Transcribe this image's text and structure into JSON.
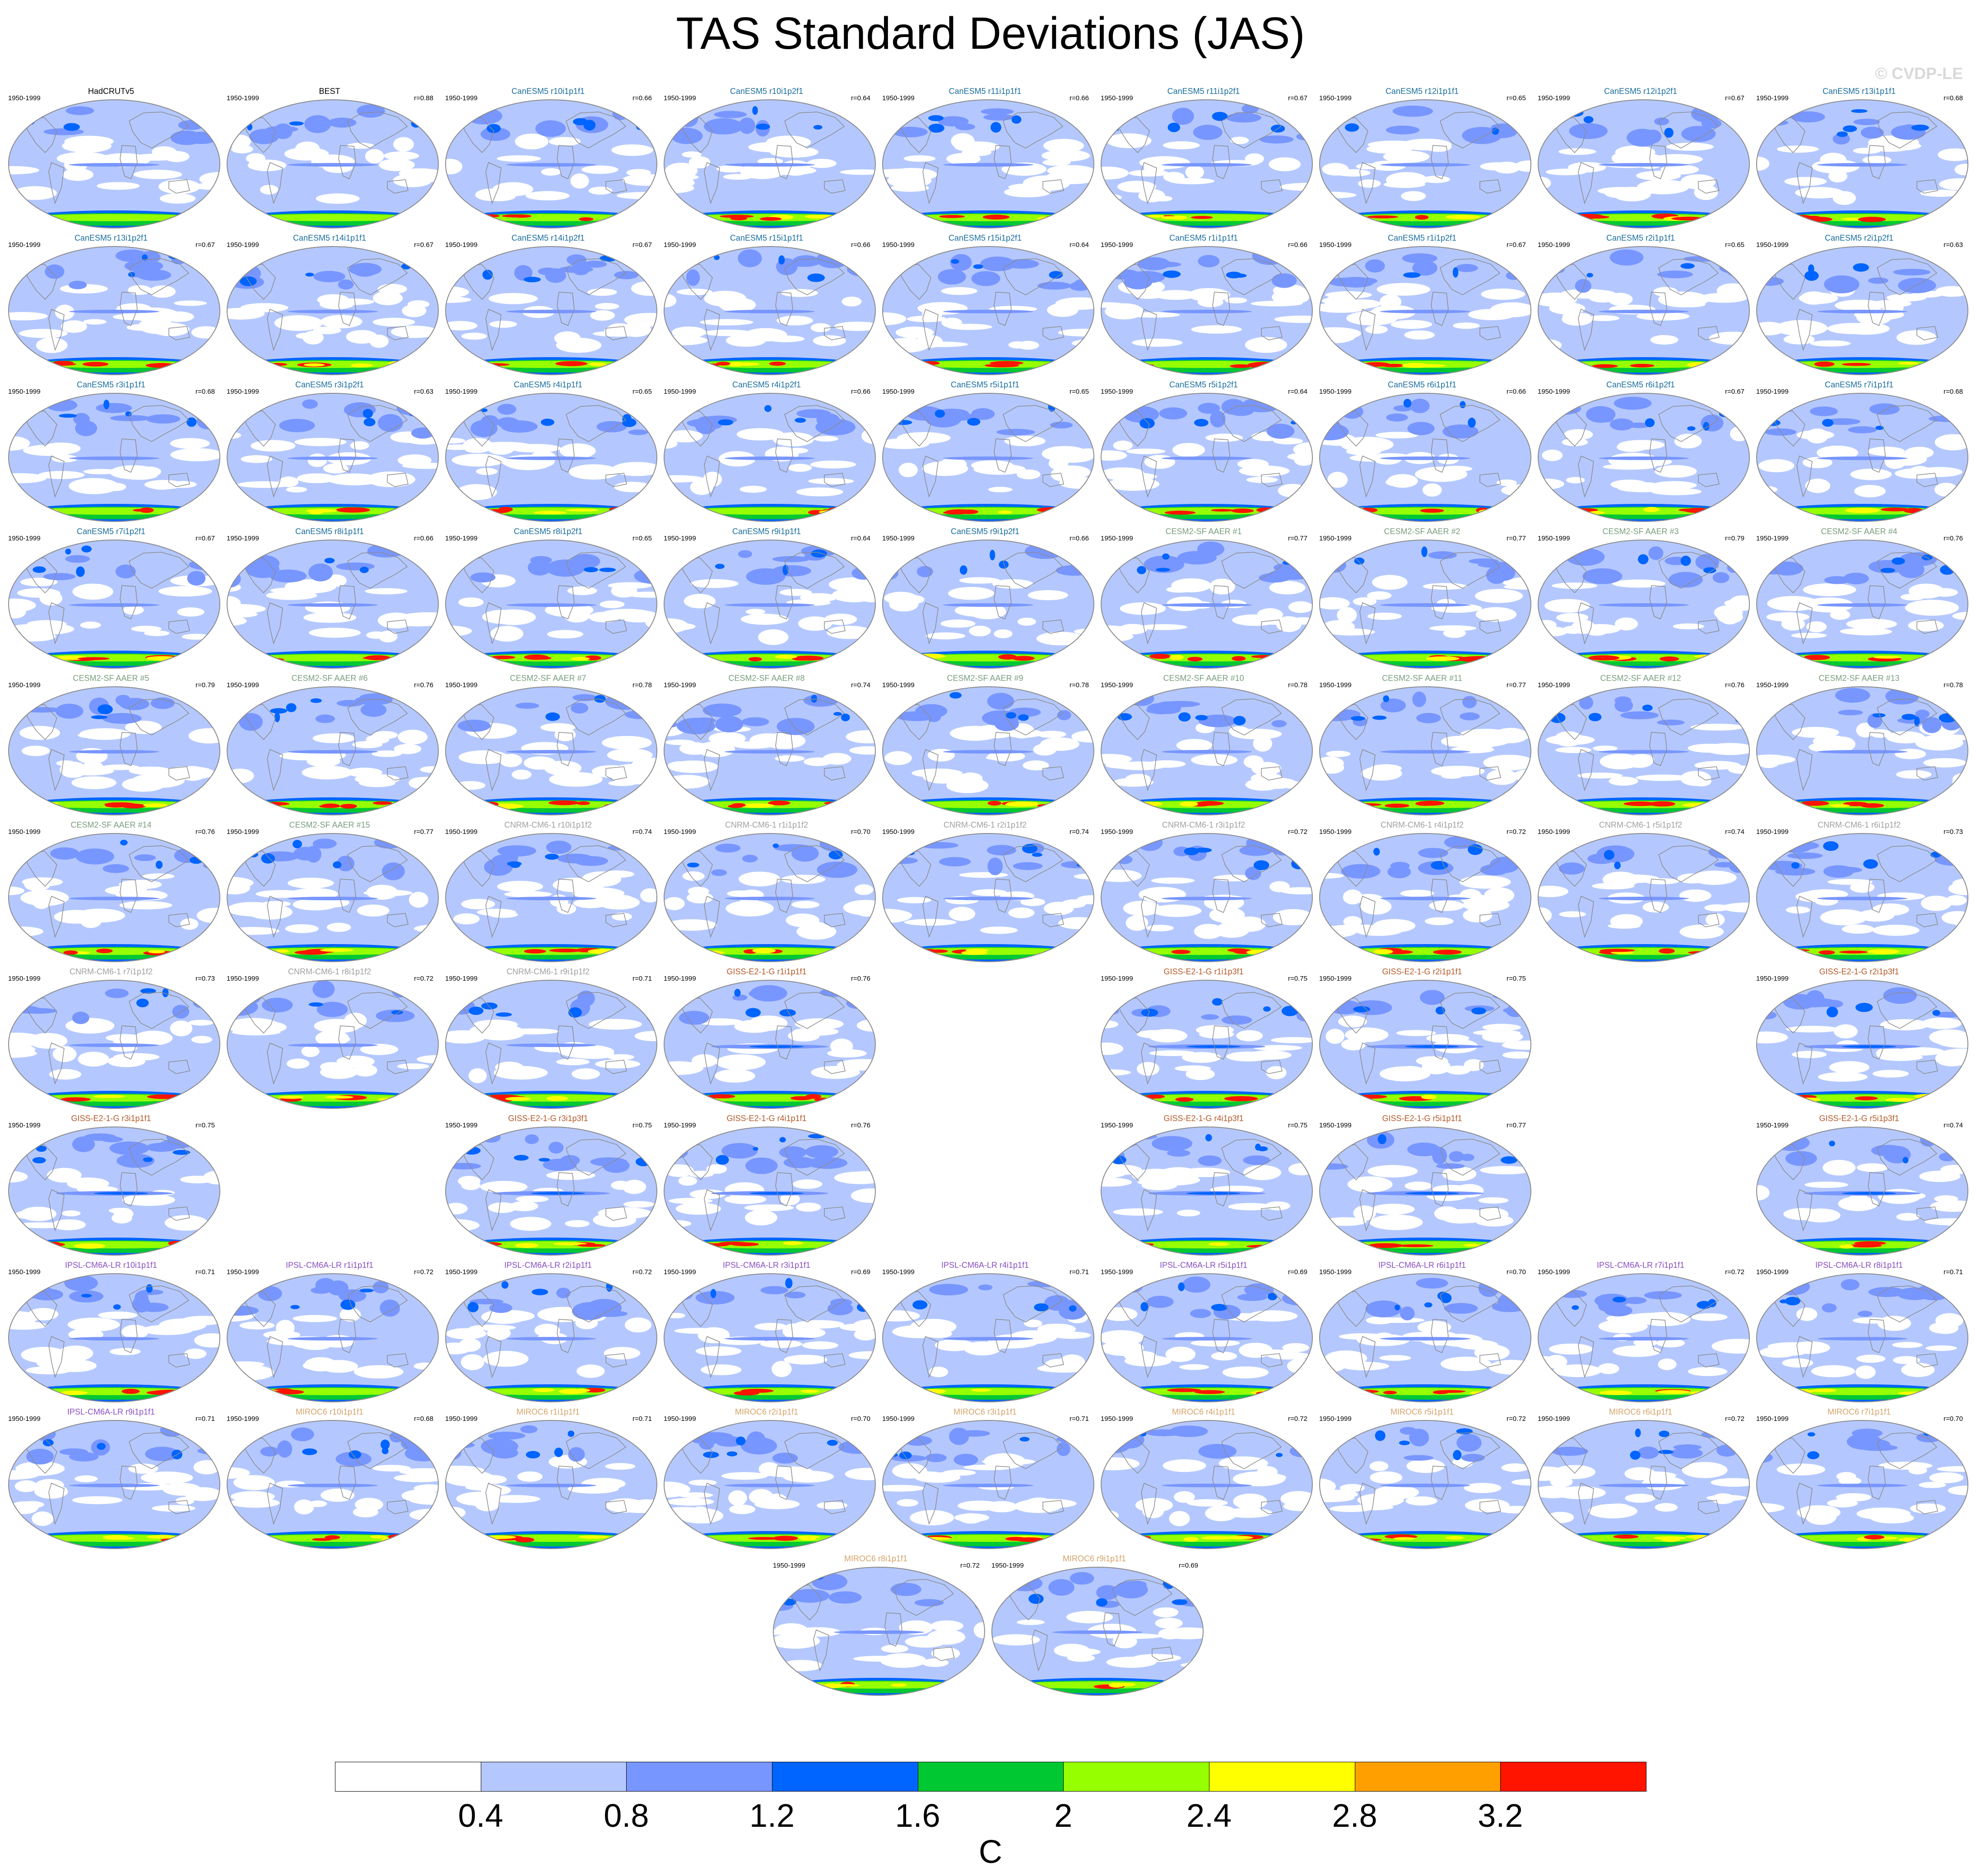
{
  "title": "TAS Standard Deviations (JAS)",
  "watermark": "© CVDP-LE",
  "period": "1950-1999",
  "colors": {
    "levels": [
      "#ffffff",
      "#b4c8ff",
      "#7896ff",
      "#0064ff",
      "#00c832",
      "#96ff00",
      "#ffff00",
      "#ffa000",
      "#ff1400"
    ],
    "coastline": "#8c8c8c",
    "border": "#8c8c8c",
    "canesm5": "#1a6e9e",
    "cesm2": "#7a9e7e",
    "cnrm": "#a0a0a0",
    "giss": "#b45a2a",
    "ipsl": "#8a4fc2",
    "miroc6": "#d4a36a",
    "obs": "#000000"
  },
  "colorbar": {
    "ticks": [
      "0.4",
      "0.8",
      "1.2",
      "1.6",
      "2",
      "2.4",
      "2.8",
      "3.2"
    ],
    "units": "C"
  },
  "panels": [
    {
      "name": "HadCRUTv5",
      "r": "",
      "group": "obs",
      "row": 0,
      "col": 0
    },
    {
      "name": "BEST",
      "r": "r=0.88",
      "group": "obs",
      "row": 0,
      "col": 1
    },
    {
      "name": "CanESM5 r10i1p1f1",
      "r": "r=0.66",
      "group": "canesm5",
      "row": 0,
      "col": 2
    },
    {
      "name": "CanESM5 r10i1p2f1",
      "r": "r=0.64",
      "group": "canesm5",
      "row": 0,
      "col": 3
    },
    {
      "name": "CanESM5 r11i1p1f1",
      "r": "r=0.66",
      "group": "canesm5",
      "row": 0,
      "col": 4
    },
    {
      "name": "CanESM5 r11i1p2f1",
      "r": "r=0.67",
      "group": "canesm5",
      "row": 0,
      "col": 5
    },
    {
      "name": "CanESM5 r12i1p1f1",
      "r": "r=0.65",
      "group": "canesm5",
      "row": 0,
      "col": 6
    },
    {
      "name": "CanESM5 r12i1p2f1",
      "r": "r=0.67",
      "group": "canesm5",
      "row": 0,
      "col": 7
    },
    {
      "name": "CanESM5 r13i1p1f1",
      "r": "r=0.68",
      "group": "canesm5",
      "row": 0,
      "col": 8
    },
    {
      "name": "CanESM5 r13i1p2f1",
      "r": "r=0.67",
      "group": "canesm5",
      "row": 1,
      "col": 0
    },
    {
      "name": "CanESM5 r14i1p1f1",
      "r": "r=0.67",
      "group": "canesm5",
      "row": 1,
      "col": 1
    },
    {
      "name": "CanESM5 r14i1p2f1",
      "r": "r=0.67",
      "group": "canesm5",
      "row": 1,
      "col": 2
    },
    {
      "name": "CanESM5 r15i1p1f1",
      "r": "r=0.66",
      "group": "canesm5",
      "row": 1,
      "col": 3
    },
    {
      "name": "CanESM5 r15i1p2f1",
      "r": "r=0.64",
      "group": "canesm5",
      "row": 1,
      "col": 4
    },
    {
      "name": "CanESM5 r1i1p1f1",
      "r": "r=0.66",
      "group": "canesm5",
      "row": 1,
      "col": 5
    },
    {
      "name": "CanESM5 r1i1p2f1",
      "r": "r=0.67",
      "group": "canesm5",
      "row": 1,
      "col": 6
    },
    {
      "name": "CanESM5 r2i1p1f1",
      "r": "r=0.65",
      "group": "canesm5",
      "row": 1,
      "col": 7
    },
    {
      "name": "CanESM5 r2i1p2f1",
      "r": "r=0.63",
      "group": "canesm5",
      "row": 1,
      "col": 8
    },
    {
      "name": "CanESM5 r3i1p1f1",
      "r": "r=0.68",
      "group": "canesm5",
      "row": 2,
      "col": 0
    },
    {
      "name": "CanESM5 r3i1p2f1",
      "r": "r=0.63",
      "group": "canesm5",
      "row": 2,
      "col": 1
    },
    {
      "name": "CanESM5 r4i1p1f1",
      "r": "r=0.65",
      "group": "canesm5",
      "row": 2,
      "col": 2
    },
    {
      "name": "CanESM5 r4i1p2f1",
      "r": "r=0.66",
      "group": "canesm5",
      "row": 2,
      "col": 3
    },
    {
      "name": "CanESM5 r5i1p1f1",
      "r": "r=0.65",
      "group": "canesm5",
      "row": 2,
      "col": 4
    },
    {
      "name": "CanESM5 r5i1p2f1",
      "r": "r=0.64",
      "group": "canesm5",
      "row": 2,
      "col": 5
    },
    {
      "name": "CanESM5 r6i1p1f1",
      "r": "r=0.66",
      "group": "canesm5",
      "row": 2,
      "col": 6
    },
    {
      "name": "CanESM5 r6i1p2f1",
      "r": "r=0.67",
      "group": "canesm5",
      "row": 2,
      "col": 7
    },
    {
      "name": "CanESM5 r7i1p1f1",
      "r": "r=0.68",
      "group": "canesm5",
      "row": 2,
      "col": 8
    },
    {
      "name": "CanESM5 r7i1p2f1",
      "r": "r=0.67",
      "group": "canesm5",
      "row": 3,
      "col": 0
    },
    {
      "name": "CanESM5 r8i1p1f1",
      "r": "r=0.66",
      "group": "canesm5",
      "row": 3,
      "col": 1
    },
    {
      "name": "CanESM5 r8i1p2f1",
      "r": "r=0.65",
      "group": "canesm5",
      "row": 3,
      "col": 2
    },
    {
      "name": "CanESM5 r9i1p1f1",
      "r": "r=0.64",
      "group": "canesm5",
      "row": 3,
      "col": 3
    },
    {
      "name": "CanESM5 r9i1p2f1",
      "r": "r=0.66",
      "group": "canesm5",
      "row": 3,
      "col": 4
    },
    {
      "name": "CESM2-SF AAER #1",
      "r": "r=0.77",
      "group": "cesm2",
      "row": 3,
      "col": 5
    },
    {
      "name": "CESM2-SF AAER #2",
      "r": "r=0.77",
      "group": "cesm2",
      "row": 3,
      "col": 6
    },
    {
      "name": "CESM2-SF AAER #3",
      "r": "r=0.79",
      "group": "cesm2",
      "row": 3,
      "col": 7
    },
    {
      "name": "CESM2-SF AAER #4",
      "r": "r=0.76",
      "group": "cesm2",
      "row": 3,
      "col": 8
    },
    {
      "name": "CESM2-SF AAER #5",
      "r": "r=0.79",
      "group": "cesm2",
      "row": 4,
      "col": 0
    },
    {
      "name": "CESM2-SF AAER #6",
      "r": "r=0.76",
      "group": "cesm2",
      "row": 4,
      "col": 1
    },
    {
      "name": "CESM2-SF AAER #7",
      "r": "r=0.78",
      "group": "cesm2",
      "row": 4,
      "col": 2
    },
    {
      "name": "CESM2-SF AAER #8",
      "r": "r=0.74",
      "group": "cesm2",
      "row": 4,
      "col": 3
    },
    {
      "name": "CESM2-SF AAER #9",
      "r": "r=0.78",
      "group": "cesm2",
      "row": 4,
      "col": 4
    },
    {
      "name": "CESM2-SF AAER #10",
      "r": "r=0.78",
      "group": "cesm2",
      "row": 4,
      "col": 5
    },
    {
      "name": "CESM2-SF AAER #11",
      "r": "r=0.77",
      "group": "cesm2",
      "row": 4,
      "col": 6
    },
    {
      "name": "CESM2-SF AAER #12",
      "r": "r=0.76",
      "group": "cesm2",
      "row": 4,
      "col": 7
    },
    {
      "name": "CESM2-SF AAER #13",
      "r": "r=0.78",
      "group": "cesm2",
      "row": 4,
      "col": 8
    },
    {
      "name": "CESM2-SF AAER #14",
      "r": "r=0.76",
      "group": "cesm2",
      "row": 5,
      "col": 0
    },
    {
      "name": "CESM2-SF AAER #15",
      "r": "r=0.77",
      "group": "cesm2",
      "row": 5,
      "col": 1
    },
    {
      "name": "CNRM-CM6-1 r10i1p1f2",
      "r": "r=0.74",
      "group": "cnrm",
      "row": 5,
      "col": 2
    },
    {
      "name": "CNRM-CM6-1 r1i1p1f2",
      "r": "r=0.70",
      "group": "cnrm",
      "row": 5,
      "col": 3
    },
    {
      "name": "CNRM-CM6-1 r2i1p1f2",
      "r": "r=0.74",
      "group": "cnrm",
      "row": 5,
      "col": 4
    },
    {
      "name": "CNRM-CM6-1 r3i1p1f2",
      "r": "r=0.72",
      "group": "cnrm",
      "row": 5,
      "col": 5
    },
    {
      "name": "CNRM-CM6-1 r4i1p1f2",
      "r": "r=0.72",
      "group": "cnrm",
      "row": 5,
      "col": 6
    },
    {
      "name": "CNRM-CM6-1 r5i1p1f2",
      "r": "r=0.74",
      "group": "cnrm",
      "row": 5,
      "col": 7
    },
    {
      "name": "CNRM-CM6-1 r6i1p1f2",
      "r": "r=0.73",
      "group": "cnrm",
      "row": 5,
      "col": 8
    },
    {
      "name": "CNRM-CM6-1 r7i1p1f2",
      "r": "r=0.73",
      "group": "cnrm",
      "row": 6,
      "col": 0
    },
    {
      "name": "CNRM-CM6-1 r8i1p1f2",
      "r": "r=0.72",
      "group": "cnrm",
      "row": 6,
      "col": 1
    },
    {
      "name": "CNRM-CM6-1 r9i1p1f2",
      "r": "r=0.71",
      "group": "cnrm",
      "row": 6,
      "col": 2
    },
    {
      "name": "GISS-E2-1-G r1i1p1f1",
      "r": "r=0.76",
      "group": "giss",
      "row": 6,
      "col": 3
    },
    {
      "name": "GISS-E2-1-G r1i1p3f1",
      "r": "r=0.75",
      "group": "giss",
      "row": 6,
      "col": 5
    },
    {
      "name": "GISS-E2-1-G r2i1p1f1",
      "r": "r=0.75",
      "group": "giss",
      "row": 6,
      "col": 6
    },
    {
      "name": "GISS-E2-1-G r2i1p3f1",
      "r": "",
      "group": "giss",
      "row": 6,
      "col": 8
    },
    {
      "name": "GISS-E2-1-G r3i1p1f1",
      "r": "r=0.75",
      "group": "giss",
      "row": 7,
      "col": 0
    },
    {
      "name": "GISS-E2-1-G r3i1p3f1",
      "r": "r=0.75",
      "group": "giss",
      "row": 7,
      "col": 2
    },
    {
      "name": "GISS-E2-1-G r4i1p1f1",
      "r": "r=0.76",
      "group": "giss",
      "row": 7,
      "col": 3
    },
    {
      "name": "GISS-E2-1-G r4i1p3f1",
      "r": "r=0.75",
      "group": "giss",
      "row": 7,
      "col": 5
    },
    {
      "name": "GISS-E2-1-G r5i1p1f1",
      "r": "r=0.77",
      "group": "giss",
      "row": 7,
      "col": 6
    },
    {
      "name": "GISS-E2-1-G r5i1p3f1",
      "r": "r=0.74",
      "group": "giss",
      "row": 7,
      "col": 8
    },
    {
      "name": "IPSL-CM6A-LR r10i1p1f1",
      "r": "r=0.71",
      "group": "ipsl",
      "row": 8,
      "col": 0
    },
    {
      "name": "IPSL-CM6A-LR r1i1p1f1",
      "r": "r=0.72",
      "group": "ipsl",
      "row": 8,
      "col": 1
    },
    {
      "name": "IPSL-CM6A-LR r2i1p1f1",
      "r": "r=0.72",
      "group": "ipsl",
      "row": 8,
      "col": 2
    },
    {
      "name": "IPSL-CM6A-LR r3i1p1f1",
      "r": "r=0.69",
      "group": "ipsl",
      "row": 8,
      "col": 3
    },
    {
      "name": "IPSL-CM6A-LR r4i1p1f1",
      "r": "r=0.71",
      "group": "ipsl",
      "row": 8,
      "col": 4
    },
    {
      "name": "IPSL-CM6A-LR r5i1p1f1",
      "r": "r=0.69",
      "group": "ipsl",
      "row": 8,
      "col": 5
    },
    {
      "name": "IPSL-CM6A-LR r6i1p1f1",
      "r": "r=0.70",
      "group": "ipsl",
      "row": 8,
      "col": 6
    },
    {
      "name": "IPSL-CM6A-LR r7i1p1f1",
      "r": "r=0.72",
      "group": "ipsl",
      "row": 8,
      "col": 7
    },
    {
      "name": "IPSL-CM6A-LR r8i1p1f1",
      "r": "r=0.71",
      "group": "ipsl",
      "row": 8,
      "col": 8
    },
    {
      "name": "IPSL-CM6A-LR r9i1p1f1",
      "r": "r=0.71",
      "group": "ipsl",
      "row": 9,
      "col": 0
    },
    {
      "name": "MIROC6 r10i1p1f1",
      "r": "r=0.68",
      "group": "miroc6",
      "row": 9,
      "col": 1
    },
    {
      "name": "MIROC6 r1i1p1f1",
      "r": "r=0.71",
      "group": "miroc6",
      "row": 9,
      "col": 2
    },
    {
      "name": "MIROC6 r2i1p1f1",
      "r": "r=0.70",
      "group": "miroc6",
      "row": 9,
      "col": 3
    },
    {
      "name": "MIROC6 r3i1p1f1",
      "r": "r=0.71",
      "group": "miroc6",
      "row": 9,
      "col": 4
    },
    {
      "name": "MIROC6 r4i1p1f1",
      "r": "r=0.72",
      "group": "miroc6",
      "row": 9,
      "col": 5
    },
    {
      "name": "MIROC6 r5i1p1f1",
      "r": "r=0.72",
      "group": "miroc6",
      "row": 9,
      "col": 6
    },
    {
      "name": "MIROC6 r6i1p1f1",
      "r": "r=0.72",
      "group": "miroc6",
      "row": 9,
      "col": 7
    },
    {
      "name": "MIROC6 r7i1p1f1",
      "r": "r=0.70",
      "group": "miroc6",
      "row": 9,
      "col": 8
    },
    {
      "name": "MIROC6 r8i1p1f1",
      "r": "r=0.72",
      "group": "miroc6",
      "row": 10,
      "col": 3.5
    },
    {
      "name": "MIROC6 r9i1p1f1",
      "r": "r=0.69",
      "group": "miroc6",
      "row": 10,
      "col": 4.5
    }
  ]
}
